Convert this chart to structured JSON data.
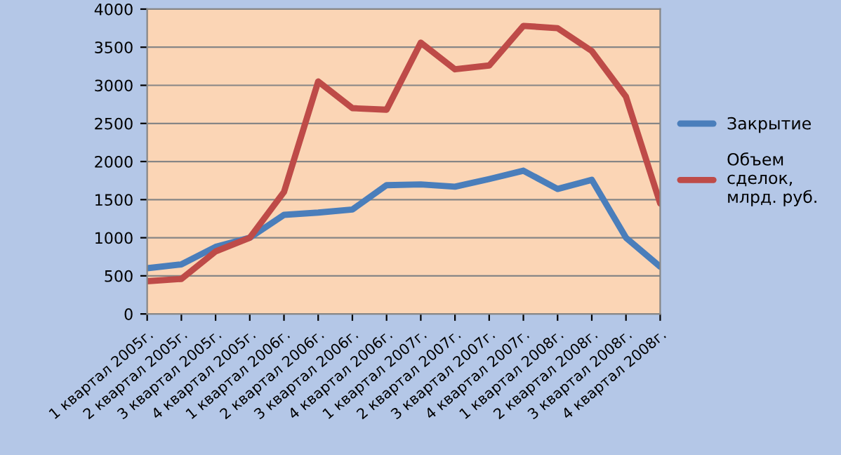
{
  "chart_data": {
    "type": "line",
    "categories": [
      "1 квартал 2005г.",
      "2 квартал 2005г.",
      "3 квартал 2005г.",
      "4 квартал 2005г.",
      "1 квартал 2006г.",
      "2 квартал 2006г.",
      "3 квартал 2006г.",
      "4 квартал 2006г.",
      "1 квартал 2007г.",
      "2 квартал 2007г.",
      "3 квартал 2007г.",
      "4 квартал 2007г.",
      "1 квартал 2008г.",
      "2 квартал 2008г.",
      "3 квартал 2008г.",
      "4 квартал 2008г."
    ],
    "series": [
      {
        "name": "Закрытие",
        "color": "#4a7ebb",
        "values": [
          600,
          650,
          880,
          1000,
          1300,
          1330,
          1370,
          1690,
          1700,
          1670,
          1770,
          1880,
          1640,
          1760,
          1000,
          620
        ]
      },
      {
        "name": "Объем сделок, млрд. руб.",
        "color": "#be4b48",
        "values": [
          430,
          460,
          820,
          1000,
          1600,
          3050,
          2700,
          2680,
          3560,
          3210,
          3260,
          3780,
          3750,
          3450,
          2850,
          1450
        ]
      }
    ],
    "ylim": [
      0,
      4000
    ],
    "yticks": [
      0,
      500,
      1000,
      1500,
      2000,
      2500,
      3000,
      3500,
      4000
    ],
    "grid": "y",
    "legend": "right",
    "marker": "none",
    "line_style": "solid"
  }
}
